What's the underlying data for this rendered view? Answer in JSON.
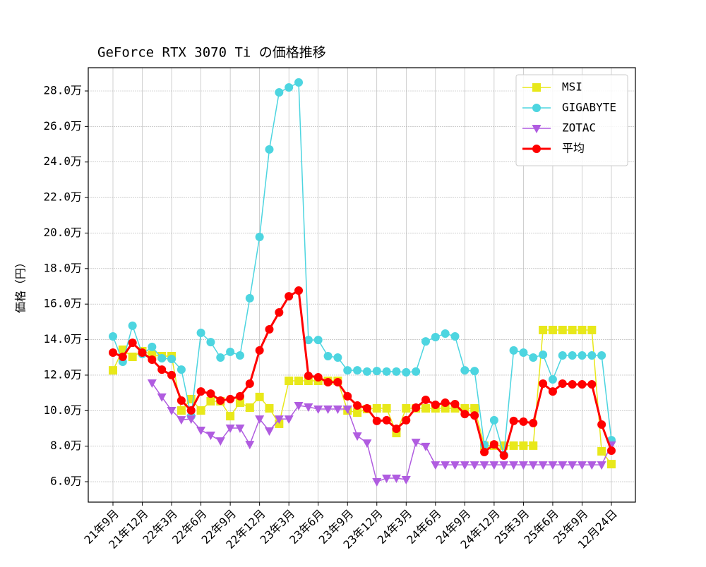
{
  "chart_data": {
    "type": "line",
    "title": "GeForce RTX 3070 Ti の価格推移",
    "y_label": "価格（円）",
    "categories": [
      "21年9月",
      null,
      null,
      "21年12月",
      null,
      null,
      "22年3月",
      null,
      null,
      "22年6月",
      null,
      null,
      "22年9月",
      null,
      null,
      "22年12月",
      null,
      null,
      "23年3月",
      null,
      null,
      "23年6月",
      null,
      null,
      "23年9月",
      null,
      null,
      "23年12月",
      null,
      null,
      "24年3月",
      null,
      null,
      "24年6月",
      null,
      null,
      "24年9月",
      null,
      null,
      "24年12月",
      null,
      null,
      "25年3月",
      null,
      null,
      "25年6月",
      null,
      null,
      "25年9月",
      null,
      null,
      "12月24日"
    ],
    "series": [
      {
        "name": "MSI",
        "color": "#e8e81a",
        "marker": "square",
        "values": [
          122700,
          134300,
          130300,
          133500,
          131500,
          130700,
          130700,
          100100,
          106500,
          100100,
          105300,
          105300,
          96900,
          104500,
          101700,
          107700,
          101300,
          92600,
          116800,
          116800,
          116800,
          116800,
          116800,
          116800,
          100100,
          98900,
          100900,
          101300,
          101300,
          87400,
          101300,
          101300,
          101300,
          101300,
          101300,
          101300,
          101300,
          101300,
          80300,
          80300,
          80300,
          80300,
          80300,
          80300,
          145400,
          145400,
          145400,
          145400,
          145400,
          145400,
          77100,
          69900
        ]
      },
      {
        "name": "GIGABYTE",
        "color": "#4dd5e0",
        "marker": "circle",
        "values": [
          141800,
          127500,
          147800,
          131900,
          135900,
          129500,
          129100,
          123100,
          96900,
          143800,
          138600,
          129900,
          133100,
          131100,
          163300,
          197800,
          247100,
          279200,
          282000,
          284800,
          139800,
          139800,
          130700,
          129900,
          122700,
          122700,
          122000,
          122300,
          122000,
          122000,
          121600,
          122000,
          139000,
          141400,
          143400,
          141800,
          122700,
          122300,
          80700,
          94600,
          75100,
          133900,
          132700,
          129900,
          131500,
          117600,
          131100,
          131100,
          131100,
          131100,
          131100,
          83400
        ]
      },
      {
        "name": "ZOTAC",
        "color": "#b05ce0",
        "marker": "triangle-down",
        "values": [
          null,
          null,
          null,
          null,
          115600,
          107700,
          100100,
          94900,
          95300,
          89000,
          86200,
          83000,
          90200,
          90200,
          81000,
          95300,
          88600,
          95300,
          95300,
          102900,
          102100,
          100900,
          100900,
          100900,
          100900,
          85800,
          81800,
          60000,
          62000,
          62000,
          61200,
          82200,
          79900,
          69500,
          69500,
          69500,
          69500,
          69500,
          69500,
          69500,
          69500,
          69500,
          69500,
          69500,
          69500,
          69500,
          69500,
          69500,
          69500,
          69500,
          69500,
          80700
        ]
      },
      {
        "name": "平均",
        "color": "#ff0000",
        "marker": "circle",
        "bold": true,
        "values": [
          132700,
          130300,
          138200,
          132700,
          128700,
          123100,
          120000,
          105700,
          100100,
          110800,
          109600,
          105700,
          106500,
          108100,
          115200,
          133900,
          145800,
          155300,
          164400,
          167600,
          119600,
          118800,
          116000,
          116000,
          108100,
          102900,
          101300,
          94200,
          94600,
          89800,
          94600,
          101700,
          106100,
          103300,
          104500,
          103700,
          98100,
          97300,
          76700,
          81000,
          74700,
          94200,
          93800,
          93000,
          115200,
          110800,
          115200,
          114800,
          114800,
          114800,
          92200,
          77500
        ]
      }
    ],
    "ylim": [
      48500,
      293100
    ],
    "yticks": [
      {
        "value": 60000,
        "label": "6.0万"
      },
      {
        "value": 80000,
        "label": "8.0万"
      },
      {
        "value": 100000,
        "label": "10.0万"
      },
      {
        "value": 120000,
        "label": "12.0万"
      },
      {
        "value": 140000,
        "label": "14.0万"
      },
      {
        "value": 160000,
        "label": "16.0万"
      },
      {
        "value": 180000,
        "label": "18.0万"
      },
      {
        "value": 200000,
        "label": "20.0万"
      },
      {
        "value": 220000,
        "label": "22.0万"
      },
      {
        "value": 240000,
        "label": "24.0万"
      },
      {
        "value": 260000,
        "label": "26.0万"
      },
      {
        "value": 280000,
        "label": "28.0万"
      }
    ],
    "grid": true,
    "legend": "upper right"
  }
}
